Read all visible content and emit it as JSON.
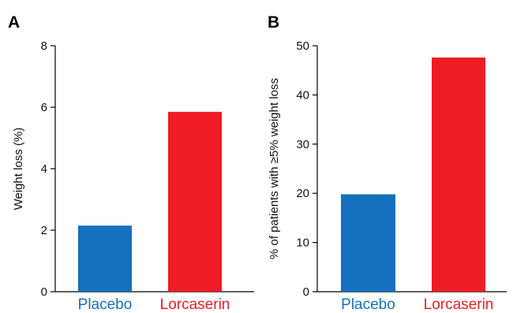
{
  "figure": {
    "panels": [
      "A",
      "B"
    ]
  },
  "chart_data": [
    {
      "panel": "A",
      "type": "bar",
      "categories": [
        "Placebo",
        "Lorcaserin"
      ],
      "values": [
        2.15,
        5.85
      ],
      "colors": [
        "#1570be",
        "#ee1c25"
      ],
      "title": "",
      "xlabel": "",
      "ylabel": "Weight loss (%)",
      "ylim": [
        0,
        8
      ],
      "yticks": [
        0,
        2,
        4,
        6,
        8
      ],
      "grid": false,
      "legend": "none"
    },
    {
      "panel": "B",
      "type": "bar",
      "categories": [
        "Placebo",
        "Lorcaserin"
      ],
      "values": [
        19.8,
        47.6
      ],
      "colors": [
        "#1570be",
        "#ee1c25"
      ],
      "title": "",
      "xlabel": "",
      "ylabel": "% of patients with ≥5% weight loss",
      "ylim": [
        0,
        50
      ],
      "yticks": [
        0,
        10,
        20,
        30,
        40,
        50
      ],
      "grid": false,
      "legend": "none"
    }
  ]
}
